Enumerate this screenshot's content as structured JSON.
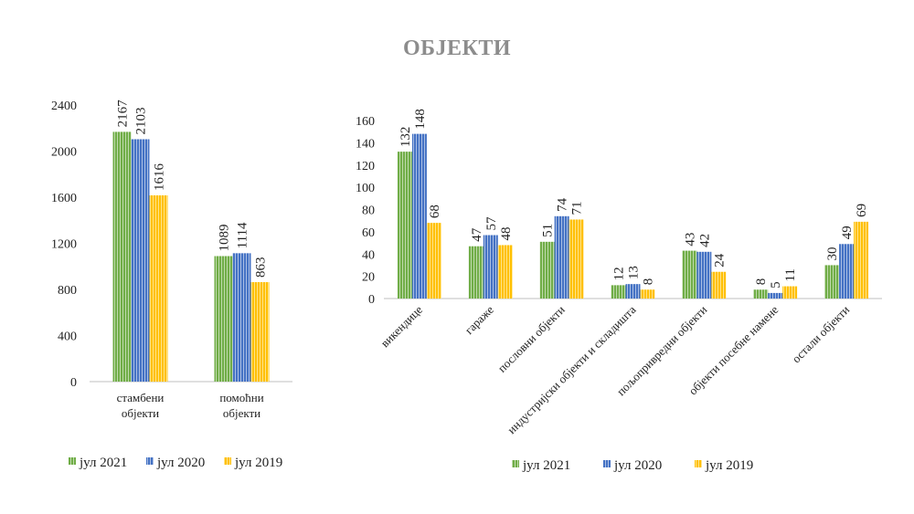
{
  "title": "ОБЈЕКТИ",
  "colors": {
    "jul2021": "#70ad47",
    "jul2020": "#4472c4",
    "jul2019": "#ffc000"
  },
  "chart_data": [
    {
      "type": "bar",
      "title": "",
      "categories": [
        [
          "стамбени",
          "објекти"
        ],
        [
          "помоћни",
          "објекти"
        ]
      ],
      "series": [
        {
          "name": "јул 2021",
          "values": [
            2167,
            1089
          ]
        },
        {
          "name": "јул 2020",
          "values": [
            2103,
            1114
          ]
        },
        {
          "name": "јул 2019",
          "values": [
            1616,
            863
          ]
        }
      ],
      "ylim": [
        0,
        2400
      ],
      "yticks": [
        0,
        400,
        800,
        1200,
        1600,
        2000,
        2400
      ],
      "grid": false,
      "legend": "bottom"
    },
    {
      "type": "bar",
      "title": "",
      "categories": [
        "викендице",
        "гараже",
        "пословни објекти",
        "индустријски објекти и складишта",
        "пољопривредни објекти",
        "објекти посебне намене",
        "остали објекти"
      ],
      "series": [
        {
          "name": "јул 2021",
          "values": [
            132,
            47,
            51,
            12,
            43,
            8,
            30
          ]
        },
        {
          "name": "јул 2020",
          "values": [
            148,
            57,
            74,
            13,
            42,
            5,
            49
          ]
        },
        {
          "name": "јул 2019",
          "values": [
            68,
            48,
            71,
            8,
            24,
            11,
            69
          ]
        }
      ],
      "ylim": [
        0,
        160
      ],
      "yticks": [
        0,
        20,
        40,
        60,
        80,
        100,
        120,
        140,
        160
      ],
      "grid": false,
      "legend": "bottom"
    }
  ]
}
